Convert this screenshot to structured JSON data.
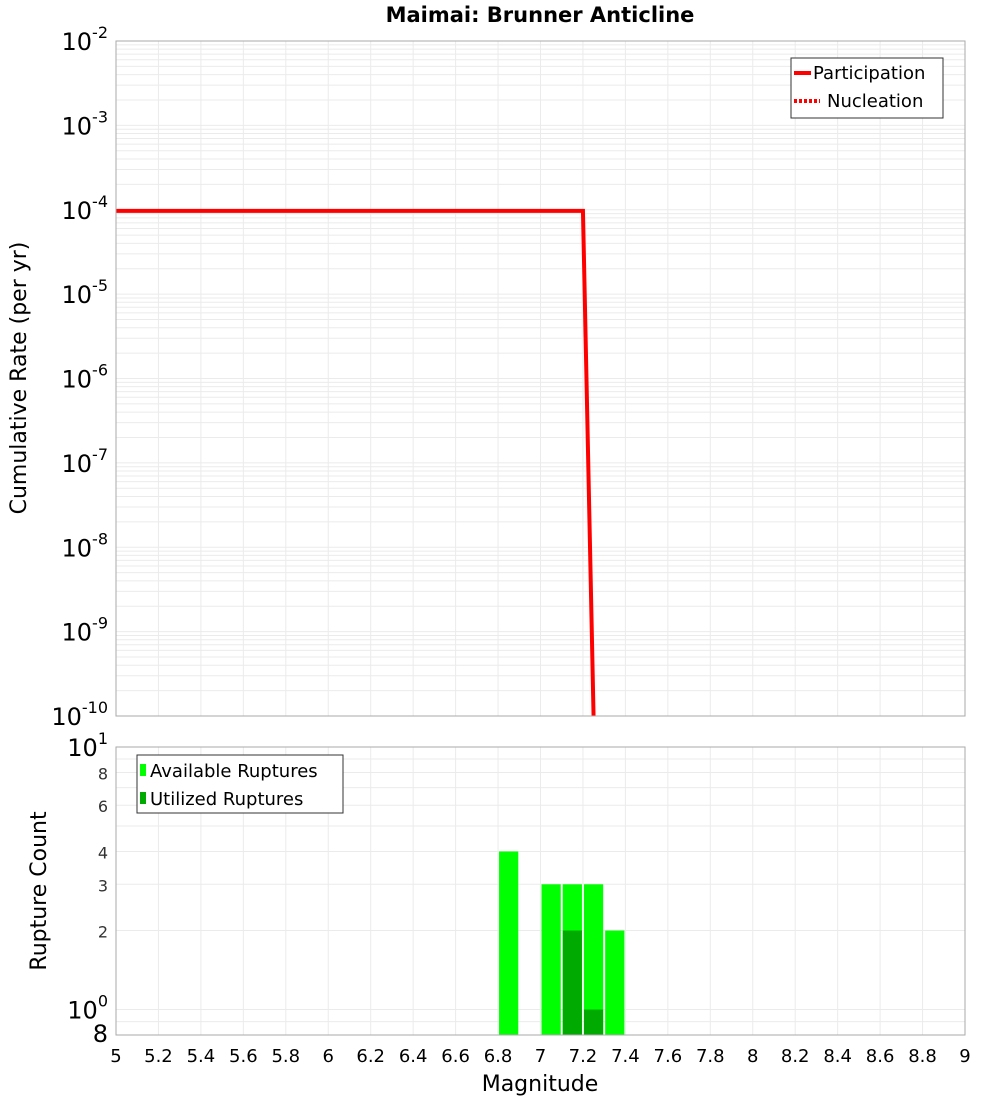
{
  "chart_data": [
    {
      "type": "line",
      "title": "Maimai: Brunner Anticline",
      "xlabel": "",
      "ylabel": "Cumulative Rate (per yr)",
      "xlim": [
        5,
        9
      ],
      "ylim": [
        1e-10,
        0.01
      ],
      "yscale": "log",
      "grid": true,
      "legend_position": "upper right",
      "y_ticks": [
        {
          "base": "10",
          "exp": "-2",
          "value": 0.01
        },
        {
          "base": "10",
          "exp": "-3",
          "value": 0.001
        },
        {
          "base": "10",
          "exp": "-4",
          "value": 0.0001
        },
        {
          "base": "10",
          "exp": "-5",
          "value": 1e-05
        },
        {
          "base": "10",
          "exp": "-6",
          "value": 1e-06
        },
        {
          "base": "10",
          "exp": "-7",
          "value": 1e-07
        },
        {
          "base": "10",
          "exp": "-8",
          "value": 1e-08
        },
        {
          "base": "10",
          "exp": "-9",
          "value": 1e-09
        },
        {
          "base": "10",
          "exp": "-10",
          "value": 1e-10
        }
      ],
      "series": [
        {
          "name": "Participation",
          "style": "solid",
          "color": "#ff0000",
          "x": [
            5.0,
            7.2,
            7.25
          ],
          "y": [
            9.7e-05,
            9.7e-05,
            1e-10
          ]
        },
        {
          "name": "Nucleation",
          "style": "dotted",
          "color": "#ff0000",
          "x": [],
          "y": []
        }
      ]
    },
    {
      "type": "bar",
      "title": "",
      "xlabel": "Magnitude",
      "ylabel": "Rupture Count",
      "xlim": [
        5,
        9
      ],
      "ylim": [
        0.8,
        10
      ],
      "yscale": "log",
      "grid": true,
      "legend_position": "upper left",
      "x_ticks": [
        "5",
        "5.2",
        "5.4",
        "5.6",
        "5.8",
        "6",
        "6.2",
        "6.4",
        "6.6",
        "6.8",
        "7",
        "7.2",
        "7.4",
        "7.6",
        "7.8",
        "8",
        "8.2",
        "8.4",
        "8.6",
        "8.8",
        "9"
      ],
      "y_ticks": [
        {
          "label": "10",
          "exp": "1",
          "value": 10,
          "major": true
        },
        {
          "label": "8",
          "value": 8,
          "major": false
        },
        {
          "label": "6",
          "value": 6,
          "major": false
        },
        {
          "label": "4",
          "value": 4,
          "major": false
        },
        {
          "label": "3",
          "value": 3,
          "major": false
        },
        {
          "label": "2",
          "value": 2,
          "major": false
        },
        {
          "label": "10",
          "exp": "0",
          "value": 1,
          "major": true
        },
        {
          "label": "8",
          "value": 0.8,
          "major": true
        }
      ],
      "bar_width": 0.1,
      "categories": [
        6.85,
        7.05,
        7.15,
        7.25,
        7.35
      ],
      "series": [
        {
          "name": "Available Ruptures",
          "color": "#00ff00",
          "values": [
            4,
            3,
            3,
            3,
            2
          ]
        },
        {
          "name": "Utilized Ruptures",
          "color": "#00aa00",
          "values": [
            0,
            0,
            2,
            1,
            0
          ]
        }
      ]
    }
  ],
  "colors": {
    "grid": "#ebebeb",
    "frame": "#aaaaaa",
    "participation": "#ff0000",
    "available": "#00ff00",
    "utilized": "#00aa00"
  }
}
